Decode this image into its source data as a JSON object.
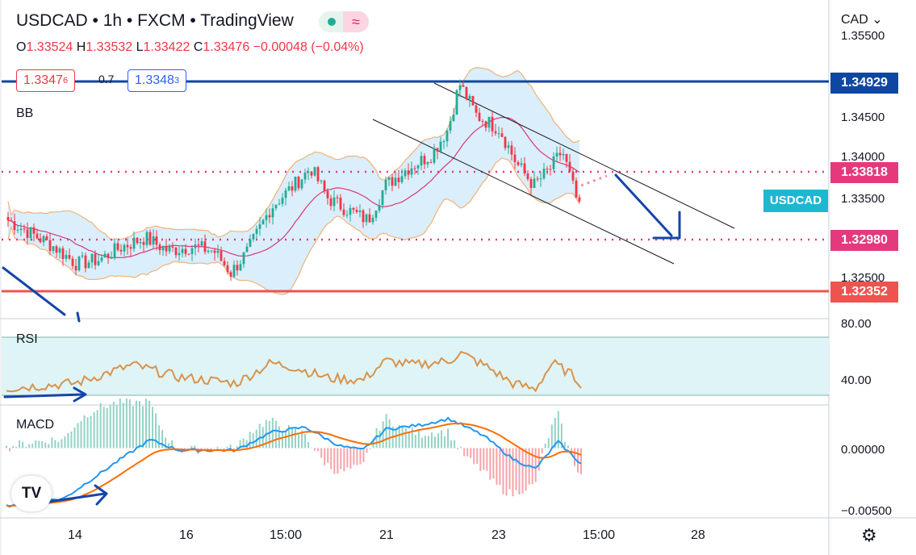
{
  "header": {
    "title": "USDCAD • 1h • FXCM • TradingView",
    "open_label": "O",
    "open": "1.33524",
    "high_label": "H",
    "high": "1.33532",
    "low_label": "L",
    "low": "1.33422",
    "close_label": "C",
    "close": "1.33476",
    "change": "−0.00048 (−0.04%)"
  },
  "trade": {
    "sell_price": "1.3347",
    "sell_sup": "6",
    "spread": "0.7",
    "buy_price": "1.3348",
    "buy_sup": "3"
  },
  "currency_menu": "CAD ⌄",
  "panes": {
    "bb": "BB",
    "rsi": "RSI",
    "macd": "MACD"
  },
  "price_axis": [
    "1.35500",
    "1.34500",
    "1.34000",
    "1.33500",
    "1.32500"
  ],
  "rsi_axis": [
    "80.00",
    "40.00"
  ],
  "macd_axis": [
    "0.00000",
    "−0.00500"
  ],
  "levels": {
    "resistance": "1.34929",
    "pivot": "1.33818",
    "target": "1.32980",
    "support": "1.32352"
  },
  "symbol_tag": "USDCAD",
  "time_axis": [
    "14",
    "16",
    "15:00",
    "21",
    "23",
    "15:00",
    "28"
  ],
  "colors": {
    "up": "#22ab94",
    "down": "#f23645",
    "bb_mid": "#d63a79",
    "bb_band": "#f0b27a",
    "bb_fill": "#dbeefb",
    "rsi_line": "#d9924a",
    "macd": "#2196f3",
    "signal": "#ff6d00",
    "level_blue": "#0d47a1",
    "level_pink": "#e5397d",
    "level_red": "#ef5350",
    "arrow": "#1545a8"
  },
  "chart_data": {
    "type": "candlestick",
    "symbol": "USDCAD",
    "interval": "1h",
    "price_range": [
      1.3225,
      1.356
    ],
    "close_path": [
      {
        "t": 0,
        "p": 1.3335
      },
      {
        "t": 0.04,
        "p": 1.332
      },
      {
        "t": 0.08,
        "p": 1.3305
      },
      {
        "t": 0.12,
        "p": 1.3285
      },
      {
        "t": 0.16,
        "p": 1.329
      },
      {
        "t": 0.2,
        "p": 1.3305
      },
      {
        "t": 0.24,
        "p": 1.3315
      },
      {
        "t": 0.28,
        "p": 1.33
      },
      {
        "t": 0.32,
        "p": 1.3305
      },
      {
        "t": 0.36,
        "p": 1.33
      },
      {
        "t": 0.39,
        "p": 1.3275
      },
      {
        "t": 0.42,
        "p": 1.33
      },
      {
        "t": 0.46,
        "p": 1.335
      },
      {
        "t": 0.5,
        "p": 1.3375
      },
      {
        "t": 0.53,
        "p": 1.3395
      },
      {
        "t": 0.56,
        "p": 1.336
      },
      {
        "t": 0.6,
        "p": 1.3345
      },
      {
        "t": 0.63,
        "p": 1.3335
      },
      {
        "t": 0.66,
        "p": 1.3375
      },
      {
        "t": 0.7,
        "p": 1.3395
      },
      {
        "t": 0.74,
        "p": 1.341
      },
      {
        "t": 0.77,
        "p": 1.344
      },
      {
        "t": 0.79,
        "p": 1.3492
      },
      {
        "t": 0.82,
        "p": 1.3455
      },
      {
        "t": 0.86,
        "p": 1.344
      },
      {
        "t": 0.89,
        "p": 1.34
      },
      {
        "t": 0.92,
        "p": 1.3375
      },
      {
        "t": 0.95,
        "p": 1.3395
      },
      {
        "t": 0.97,
        "p": 1.3415
      },
      {
        "t": 1.0,
        "p": 1.3348
      }
    ],
    "rsi": [
      {
        "t": 0,
        "v": 35
      },
      {
        "t": 0.12,
        "v": 40
      },
      {
        "t": 0.22,
        "v": 58
      },
      {
        "t": 0.3,
        "v": 46
      },
      {
        "t": 0.4,
        "v": 40
      },
      {
        "t": 0.46,
        "v": 60
      },
      {
        "t": 0.5,
        "v": 56
      },
      {
        "t": 0.56,
        "v": 45
      },
      {
        "t": 0.62,
        "v": 43
      },
      {
        "t": 0.66,
        "v": 62
      },
      {
        "t": 0.71,
        "v": 58
      },
      {
        "t": 0.77,
        "v": 62
      },
      {
        "t": 0.79,
        "v": 70
      },
      {
        "t": 0.84,
        "v": 55
      },
      {
        "t": 0.88,
        "v": 40
      },
      {
        "t": 0.92,
        "v": 34
      },
      {
        "t": 0.95,
        "v": 60
      },
      {
        "t": 0.98,
        "v": 50
      },
      {
        "t": 1.0,
        "v": 40
      }
    ],
    "rsi_range": [
      20,
      100
    ],
    "macd": [
      {
        "t": 0,
        "v": -0.0055
      },
      {
        "t": 0.1,
        "v": -0.0048
      },
      {
        "t": 0.2,
        "v": -0.001
      },
      {
        "t": 0.25,
        "v": 0.0008
      },
      {
        "t": 0.3,
        "v": -0.0002
      },
      {
        "t": 0.4,
        "v": -0.0002
      },
      {
        "t": 0.46,
        "v": 0.0015
      },
      {
        "t": 0.52,
        "v": 0.002
      },
      {
        "t": 0.58,
        "v": 0.0002
      },
      {
        "t": 0.62,
        "v": -0.0002
      },
      {
        "t": 0.66,
        "v": 0.0018
      },
      {
        "t": 0.72,
        "v": 0.0022
      },
      {
        "t": 0.77,
        "v": 0.0028
      },
      {
        "t": 0.83,
        "v": 0.0012
      },
      {
        "t": 0.88,
        "v": -0.001
      },
      {
        "t": 0.92,
        "v": -0.002
      },
      {
        "t": 0.96,
        "v": 0.0006
      },
      {
        "t": 1.0,
        "v": -0.0015
      }
    ],
    "macd_range": [
      -0.0065,
      0.0035
    ]
  }
}
